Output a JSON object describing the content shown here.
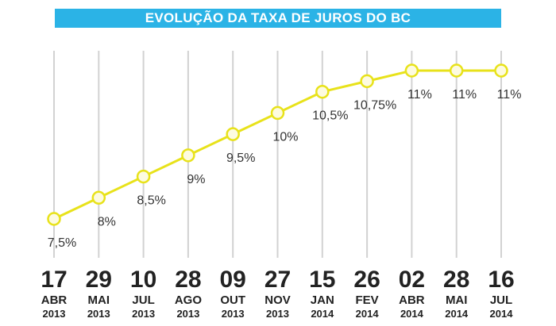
{
  "header": {
    "title": "EVOLUÇÃO DA TAXA DE JUROS DO BC"
  },
  "colors": {
    "title_bg": "#2bb3e6",
    "line": "#e8e21a",
    "marker_fill": "#fdfbe0",
    "grid": "#d2d2d2",
    "text": "#222222"
  },
  "chart_data": {
    "type": "line",
    "title": "EVOLUÇÃO DA TAXA DE JUROS DO BC",
    "xlabel": "",
    "ylabel": "",
    "unit": "%",
    "ylim": [
      7.5,
      11
    ],
    "categories": [
      {
        "day": "17",
        "month": "ABR",
        "year": "2013"
      },
      {
        "day": "29",
        "month": "MAI",
        "year": "2013"
      },
      {
        "day": "10",
        "month": "JUL",
        "year": "2013"
      },
      {
        "day": "28",
        "month": "AGO",
        "year": "2013"
      },
      {
        "day": "09",
        "month": "OUT",
        "year": "2013"
      },
      {
        "day": "27",
        "month": "NOV",
        "year": "2013"
      },
      {
        "day": "15",
        "month": "JAN",
        "year": "2014"
      },
      {
        "day": "26",
        "month": "FEV",
        "year": "2014"
      },
      {
        "day": "02",
        "month": "ABR",
        "year": "2014"
      },
      {
        "day": "28",
        "month": "MAI",
        "year": "2014"
      },
      {
        "day": "16",
        "month": "JUL",
        "year": "2014"
      }
    ],
    "values": [
      7.5,
      8,
      8.5,
      9,
      9.5,
      10,
      10.5,
      10.75,
      11,
      11,
      11
    ],
    "labels": [
      "7,5%",
      "8%",
      "8,5%",
      "9%",
      "9,5%",
      "10%",
      "10,5%",
      "10,75%",
      "11%",
      "11%",
      "11%"
    ]
  }
}
